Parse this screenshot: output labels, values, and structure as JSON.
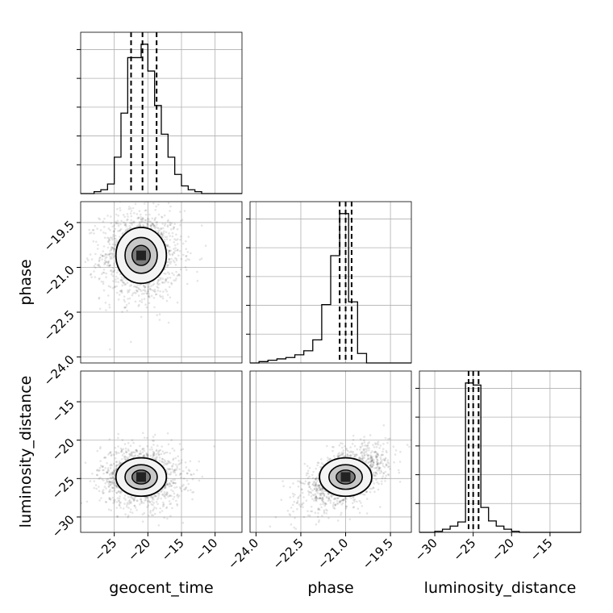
{
  "chart_data": {
    "type": "corner",
    "parameters": [
      {
        "name": "geocent_time",
        "range": [
          -30,
          -6
        ],
        "ticks": [
          -25,
          -20,
          -15,
          -10
        ],
        "tick_labels": [
          "−25",
          "−20",
          "−15",
          "−10"
        ],
        "quantiles": [
          -22.5,
          -20.8,
          -18.7
        ]
      },
      {
        "name": "phase",
        "range": [
          -24.2,
          -18.8
        ],
        "ticks": [
          -24.0,
          -22.5,
          -21.0,
          -19.5
        ],
        "tick_labels": [
          "−24.0",
          "−22.5",
          "−21.0",
          "−19.5"
        ],
        "quantiles": [
          -21.2,
          -21.0,
          -20.8
        ]
      },
      {
        "name": "luminosity_distance",
        "range": [
          -32,
          -11
        ],
        "ticks": [
          -30,
          -25,
          -20,
          -15
        ],
        "tick_labels": [
          "−30",
          "−25",
          "−20",
          "−15"
        ],
        "quantiles": [
          -25.6,
          -25.0,
          -24.3
        ]
      }
    ],
    "histograms": [
      {
        "param": "geocent_time",
        "bins": [
          -30,
          -29,
          -28,
          -27,
          -26,
          -25,
          -24,
          -23,
          -22,
          -21,
          -20,
          -19,
          -18,
          -17,
          -16,
          -15,
          -14,
          -13,
          -12,
          -11,
          -10,
          -9,
          -8,
          -7,
          -6
        ],
        "counts": [
          0,
          0,
          1,
          2,
          5,
          19,
          42,
          71,
          71,
          78,
          64,
          46,
          31,
          19,
          10,
          4,
          2,
          1,
          0,
          0,
          0,
          0,
          0,
          0
        ]
      },
      {
        "param": "phase",
        "bins": [
          -24.2,
          -23.9,
          -23.6,
          -23.3,
          -23.0,
          -22.7,
          -22.4,
          -22.1,
          -21.8,
          -21.5,
          -21.2,
          -20.9,
          -20.6,
          -20.3,
          -20.0,
          -19.7,
          -19.4,
          -19.1,
          -18.8
        ],
        "counts": [
          0,
          1,
          2,
          3,
          4,
          6,
          9,
          17,
          43,
          79,
          110,
          45,
          7,
          0,
          0,
          0,
          0,
          0
        ]
      },
      {
        "param": "luminosity_distance",
        "bins": [
          -32,
          -31,
          -30,
          -29,
          -28,
          -27,
          -26,
          -25,
          -24,
          -23,
          -22,
          -21,
          -20,
          -19,
          -18,
          -17,
          -16,
          -15,
          -14,
          -13,
          -12,
          -11
        ],
        "counts": [
          0,
          0,
          1,
          3,
          6,
          10,
          144,
          142,
          24,
          11,
          6,
          3,
          1,
          0,
          0,
          0,
          0,
          0,
          0,
          0,
          0
        ]
      }
    ],
    "scatter_panels": [
      {
        "x": "geocent_time",
        "y": "phase",
        "center": [
          -21.0,
          -20.6
        ],
        "spread": [
          3.0,
          0.75
        ],
        "corr": 0.0
      },
      {
        "x": "geocent_time",
        "y": "luminosity_distance",
        "center": [
          -21.0,
          -24.8
        ],
        "spread": [
          3.0,
          2.0
        ],
        "corr": -0.05
      },
      {
        "x": "phase",
        "y": "luminosity_distance",
        "center": [
          -21.0,
          -24.8
        ],
        "spread": [
          0.7,
          2.0
        ],
        "corr": 0.55
      }
    ],
    "xlabels": [
      "geocent_time",
      "phase",
      "luminosity_distance"
    ],
    "ylabels": [
      "",
      "phase",
      "luminosity_distance"
    ],
    "grid": true
  }
}
